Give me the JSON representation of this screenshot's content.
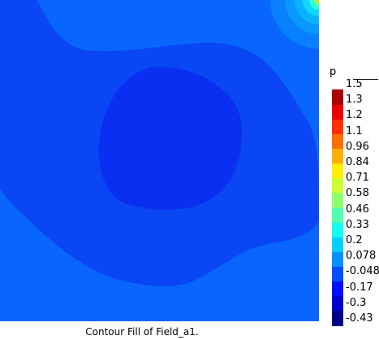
{
  "chart_data": {
    "type": "heatmap",
    "variable_label": "p",
    "caption": "Contour Fill of Field_a1.",
    "colorbar": {
      "min": -0.43,
      "max": 1.5,
      "tick_labels": [
        "1.5",
        "1.3",
        "1.2",
        "1.1",
        "0.96",
        "0.84",
        "0.71",
        "0.58",
        "0.46",
        "0.33",
        "0.2",
        "0.078",
        "-0.048",
        "-0.17",
        "-0.3",
        "-0.43"
      ],
      "colors": [
        "#00008f",
        "#0000cf",
        "#0010ff",
        "#0050ff",
        "#0090ff",
        "#00d0ff",
        "#10ffef",
        "#50ffaf",
        "#90ff6f",
        "#cfff30",
        "#ffef00",
        "#ffaf00",
        "#ff7000",
        "#ff3000",
        "#ef0000",
        "#af0000"
      ]
    },
    "field_levels": [
      {
        "label": "-0.17",
        "color": "#0a2ff0"
      },
      {
        "label": "-0.048",
        "color": "#0a46f4"
      },
      {
        "label": "0.078",
        "color": "#0866ff"
      }
    ],
    "hotspot": {
      "location": "top-right corner",
      "peak_value": 1.5
    }
  }
}
